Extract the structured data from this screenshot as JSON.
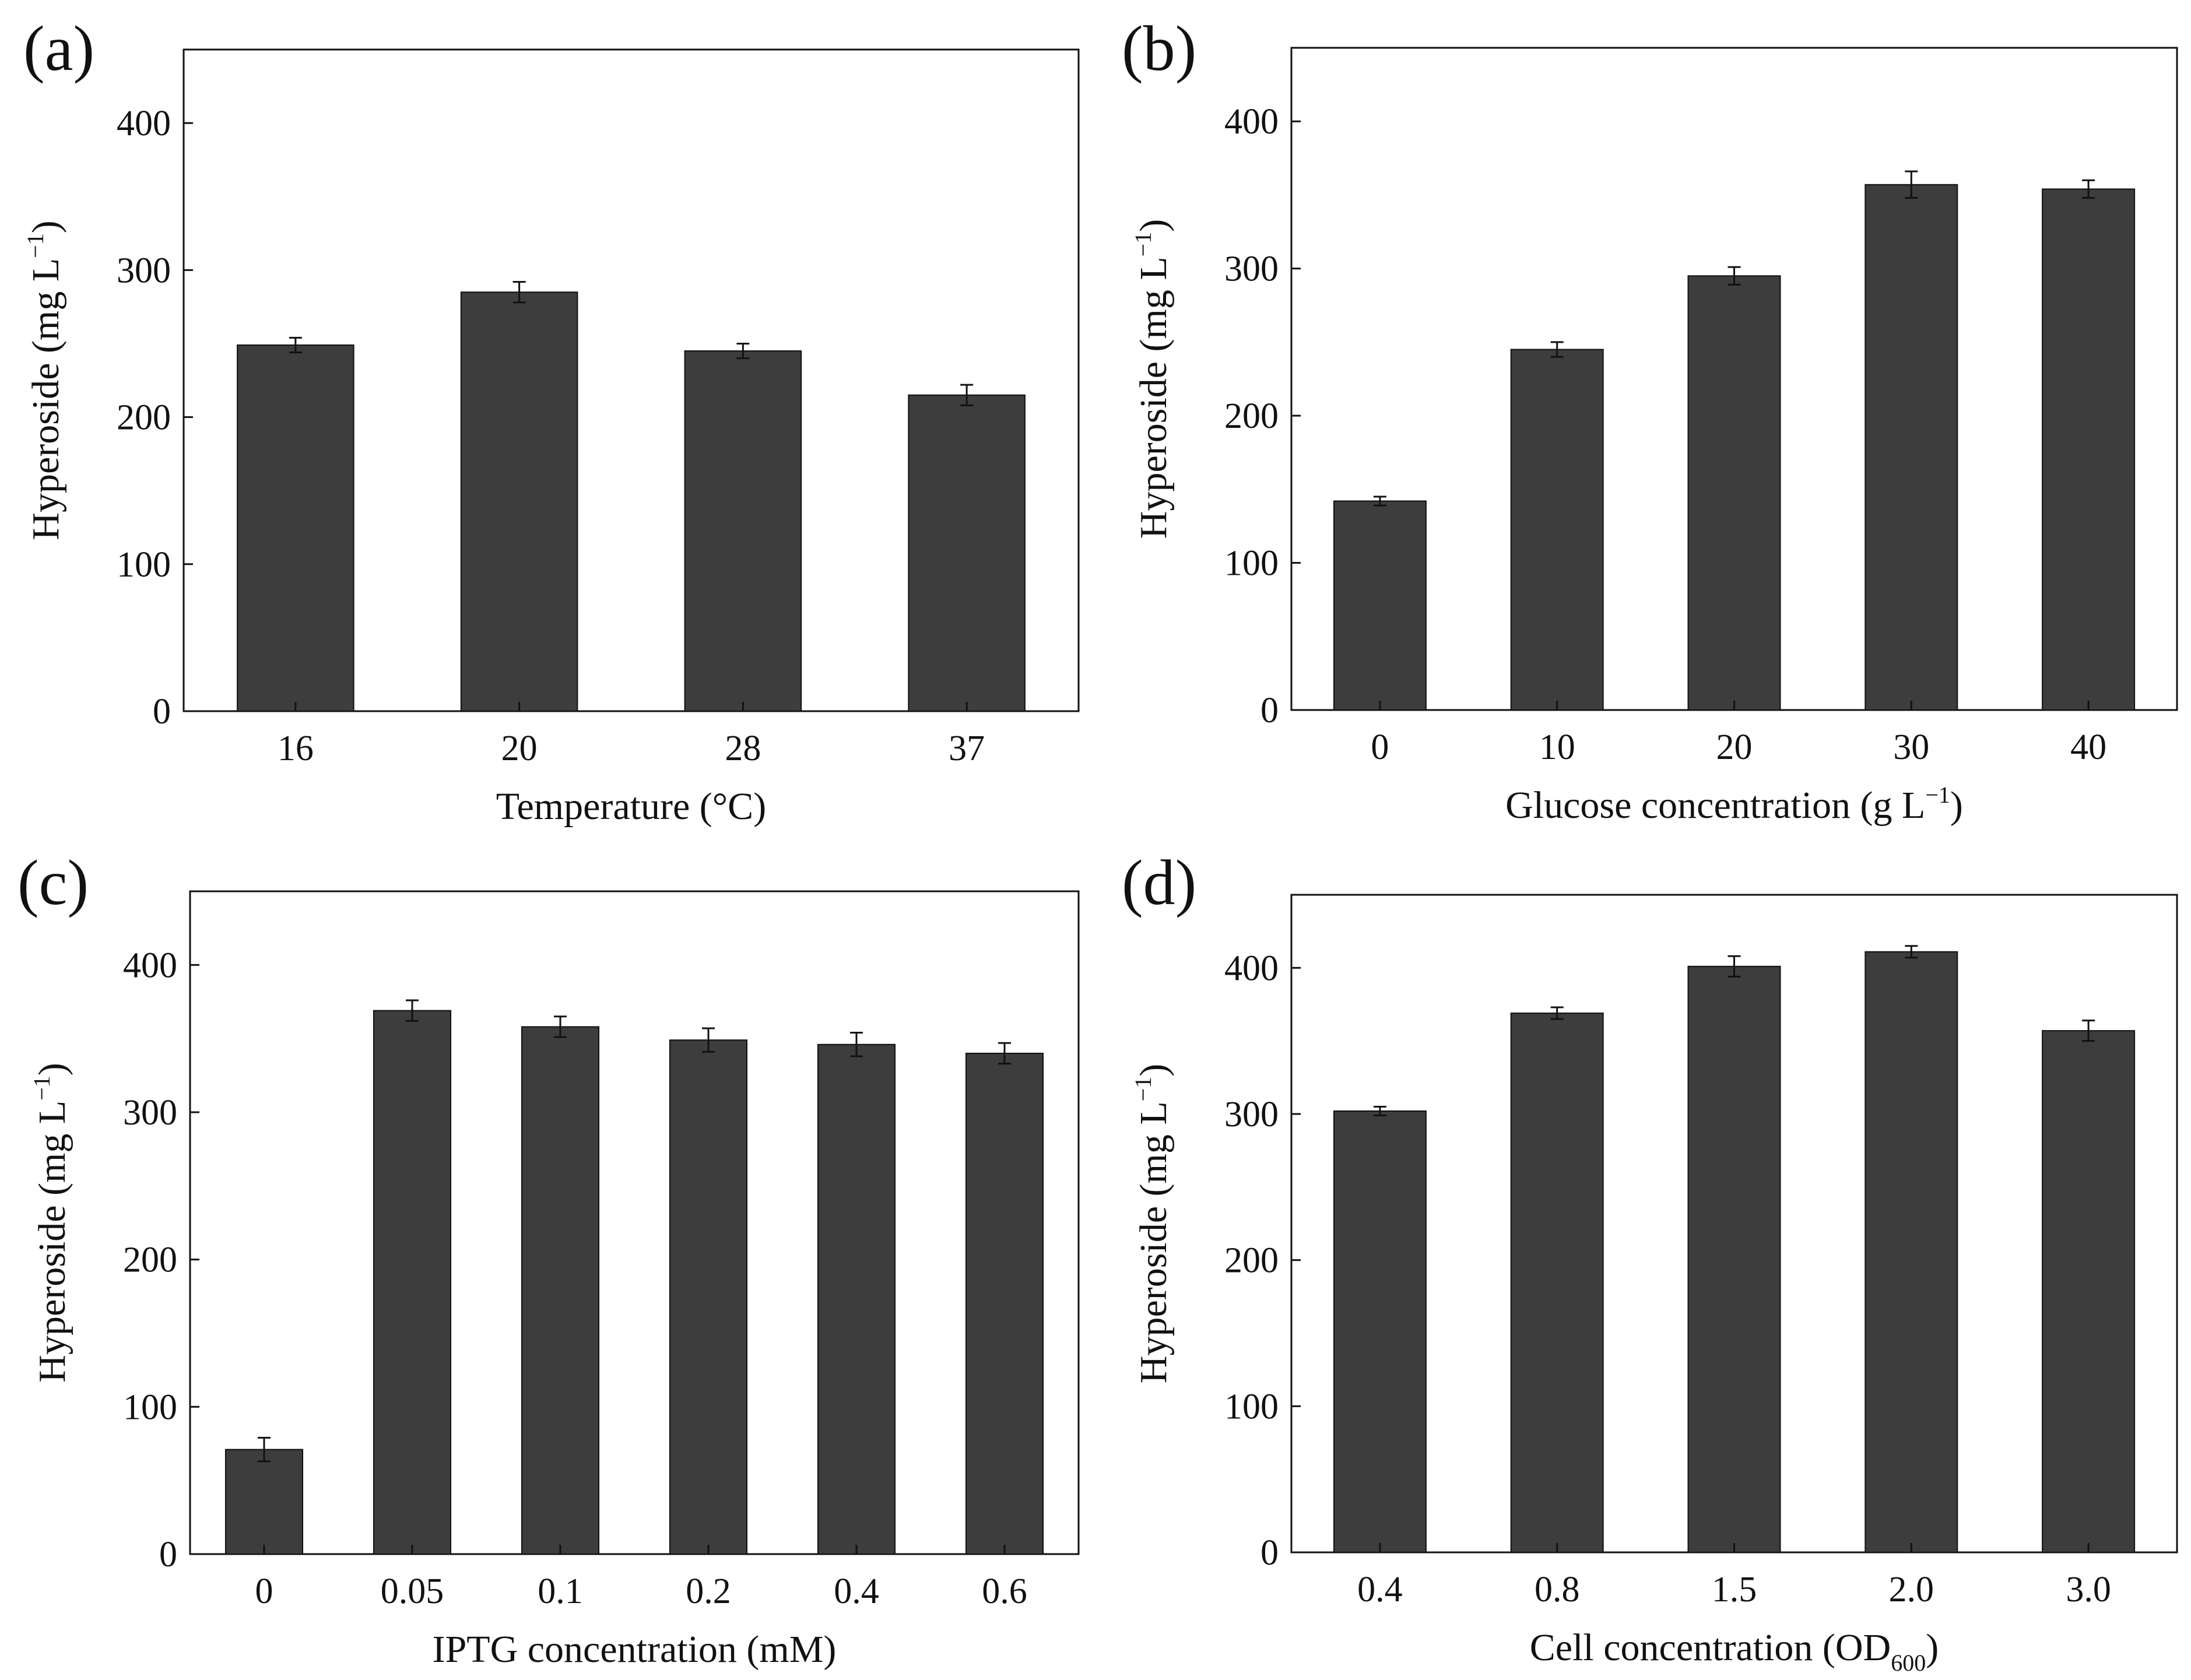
{
  "figure": {
    "panels": [
      {
        "label": "(a)"
      },
      {
        "label": "(b)"
      },
      {
        "label": "(c)"
      },
      {
        "label": "(d)"
      }
    ]
  },
  "chart_data": [
    {
      "type": "bar",
      "panel": "(a)",
      "categories": [
        "16",
        "20",
        "28",
        "37"
      ],
      "values": [
        249,
        285,
        245,
        215
      ],
      "errors": [
        5,
        7,
        5,
        7
      ],
      "xlabel": "Temperature (°C)",
      "ylabel": "Hyperoside (mg L",
      "ylabel_sup": "−1",
      "ylabel_end": ")",
      "ylim": [
        0,
        450
      ],
      "yticks": [
        0,
        100,
        200,
        300,
        400
      ],
      "bar_color": "#3d3d3d"
    },
    {
      "type": "bar",
      "panel": "(b)",
      "categories": [
        "0",
        "10",
        "20",
        "30",
        "40"
      ],
      "values": [
        142,
        245,
        295,
        357,
        354
      ],
      "errors": [
        3,
        5,
        6,
        9,
        6
      ],
      "xlabel": "Glucose concentration (g L",
      "xlabel_sup": "−1",
      "xlabel_end": ")",
      "ylabel": "Hyperoside (mg L",
      "ylabel_sup": "−1",
      "ylabel_end": ")",
      "ylim": [
        0,
        450
      ],
      "yticks": [
        0,
        100,
        200,
        300,
        400
      ],
      "bar_color": "#3d3d3d"
    },
    {
      "type": "bar",
      "panel": "(c)",
      "categories": [
        "0",
        "0.05",
        "0.1",
        "0.2",
        "0.4",
        "0.6"
      ],
      "values": [
        71,
        369,
        358,
        349,
        346,
        340
      ],
      "errors": [
        8,
        7,
        7,
        8,
        8,
        7
      ],
      "xlabel": "IPTG concentration (mM)",
      "ylabel": "Hyperoside (mg L",
      "ylabel_sup": "−1",
      "ylabel_end": ")",
      "ylim": [
        0,
        450
      ],
      "yticks": [
        0,
        100,
        200,
        300,
        400
      ],
      "bar_color": "#3d3d3d"
    },
    {
      "type": "bar",
      "panel": "(d)",
      "categories": [
        "0.4",
        "0.8",
        "1.5",
        "2.0",
        "3.0"
      ],
      "values": [
        302,
        369,
        401,
        411,
        357
      ],
      "errors": [
        3,
        4,
        7,
        4,
        7
      ],
      "xlabel": "Cell concentration (OD",
      "xlabel_sub": "600",
      "xlabel_end": ")",
      "ylabel": "Hyperoside (mg L",
      "ylabel_sup": "−1",
      "ylabel_end": ")",
      "ylim": [
        0,
        450
      ],
      "yticks": [
        0,
        100,
        200,
        300,
        400
      ],
      "bar_color": "#3d3d3d"
    }
  ]
}
